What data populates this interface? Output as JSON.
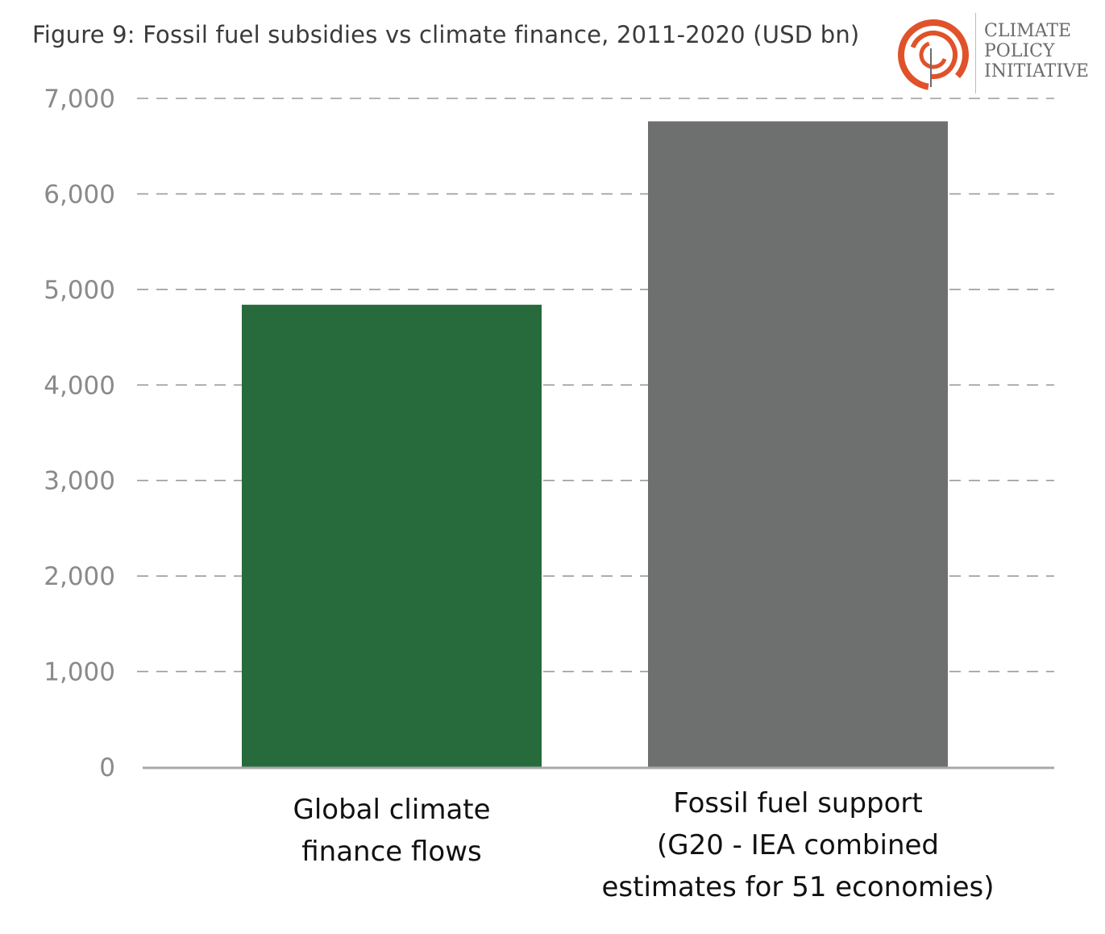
{
  "header": {
    "title": "Figure 9: Fossil fuel subsidies vs climate finance, 2011-2020 (USD bn)"
  },
  "logo": {
    "lines": [
      "CLIMATE",
      "POLICY",
      "INITIATIVE"
    ],
    "accent_color": "#e0522a"
  },
  "chart_data": {
    "type": "bar",
    "title": "Figure 9: Fossil fuel subsidies vs climate finance, 2011-2020 (USD bn)",
    "xlabel": "",
    "ylabel": "",
    "ylim": [
      0,
      7000
    ],
    "grid": true,
    "yticks": [
      "0",
      "1,000",
      "2,000",
      "3,000",
      "4,000",
      "5,000",
      "6,000",
      "7,000"
    ],
    "ytick_values": [
      0,
      1000,
      2000,
      3000,
      4000,
      5000,
      6000,
      7000
    ],
    "categories": [
      [
        "Global climate",
        "finance flows"
      ],
      [
        "Fossil fuel support",
        "(G20 - IEA combined",
        "estimates for 51 economies)"
      ]
    ],
    "values": [
      4840,
      6760
    ],
    "colors": [
      "#276a3b",
      "#6e706f"
    ]
  }
}
